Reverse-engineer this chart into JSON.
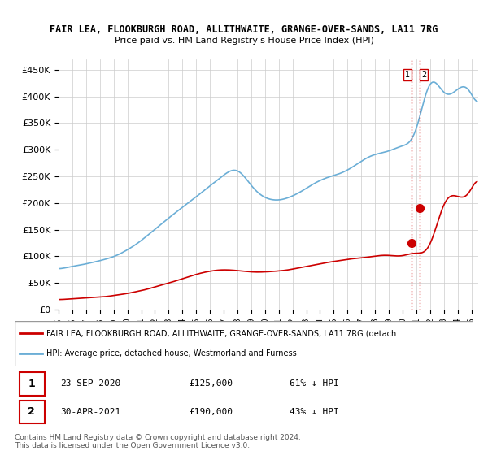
{
  "title1": "FAIR LEA, FLOOKBURGH ROAD, ALLITHWAITE, GRANGE-OVER-SANDS, LA11 7RG",
  "title2": "Price paid vs. HM Land Registry's House Price Index (HPI)",
  "ylim": [
    0,
    470000
  ],
  "yticks": [
    0,
    50000,
    100000,
    150000,
    200000,
    250000,
    300000,
    350000,
    400000,
    450000
  ],
  "ytick_labels": [
    "£0",
    "£50K",
    "£100K",
    "£150K",
    "£200K",
    "£250K",
    "£300K",
    "£350K",
    "£400K",
    "£450K"
  ],
  "hpi_color": "#6baed6",
  "price_color": "#cc0000",
  "vline_color": "#cc0000",
  "vline_style": ":",
  "sale1_date_label": "23-SEP-2020",
  "sale1_price_label": "£125,000",
  "sale1_pct_label": "61% ↓ HPI",
  "sale1_number": "1",
  "sale2_date_label": "30-APR-2021",
  "sale2_price_label": "£190,000",
  "sale2_pct_label": "43% ↓ HPI",
  "sale2_number": "2",
  "legend_line1": "FAIR LEA, FLOOKBURGH ROAD, ALLITHWAITE, GRANGE-OVER-SANDS, LA11 7RG (detach",
  "legend_line2": "HPI: Average price, detached house, Westmorland and Furness",
  "footer": "Contains HM Land Registry data © Crown copyright and database right 2024.\nThis data is licensed under the Open Government Licence v3.0.",
  "bg_color": "#ffffff",
  "grid_color": "#cccccc"
}
